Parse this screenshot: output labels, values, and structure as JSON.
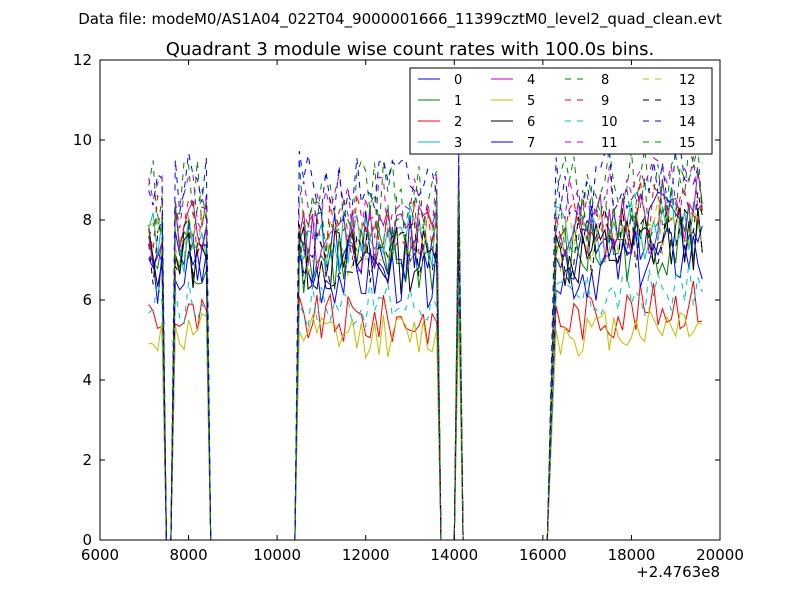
{
  "figure": {
    "suptitle": "Data file: modeM0/AS1A04_022T04_9000001666_11399cztM0_level2_quad_clean.evt"
  },
  "chart_data": {
    "type": "line",
    "title": "Quadrant 3 module wise count rates with 100.0s bins.",
    "xlabel": "",
    "ylabel": "",
    "x_offset_label": "+2.4763e8",
    "xlim": [
      6000,
      20000
    ],
    "ylim": [
      0,
      12
    ],
    "x_ticks": [
      6000,
      8000,
      10000,
      12000,
      14000,
      16000,
      18000,
      20000
    ],
    "y_ticks": [
      0,
      2,
      4,
      6,
      8,
      10,
      12
    ],
    "x_tick_labels": [
      "6000",
      "8000",
      "10000",
      "12000",
      "14000",
      "16000",
      "18000",
      "20000"
    ],
    "y_tick_labels": [
      "0",
      "2",
      "4",
      "6",
      "8",
      "10",
      "12"
    ],
    "grid": false,
    "legend_position": "top-right",
    "legend_columns": 4,
    "segments": [
      {
        "start": 7100,
        "end": 7400,
        "zero_after": [
          7500,
          7600
        ]
      },
      {
        "start": 7700,
        "end": 8400,
        "zero_after": [
          8500,
          10400
        ]
      },
      {
        "start": 10500,
        "end": 13600,
        "zero_after": [
          13700,
          14000
        ]
      },
      {
        "start": 14100,
        "end": 14100,
        "zero_after": [
          14200,
          16100
        ]
      },
      {
        "start": 16300,
        "end": 19600,
        "zero_after": []
      }
    ],
    "series": [
      {
        "name": "0",
        "color": "#0000ff",
        "dash": "solid",
        "level": 7.3,
        "peak": 8.5
      },
      {
        "name": "1",
        "color": "#008000",
        "dash": "solid",
        "level": 7.0,
        "peak": 8.2
      },
      {
        "name": "2",
        "color": "#ff0000",
        "dash": "solid",
        "level": 5.5,
        "peak": 6.3
      },
      {
        "name": "3",
        "color": "#00bfbf",
        "dash": "solid",
        "level": 7.5,
        "peak": 8.6
      },
      {
        "name": "4",
        "color": "#bf00bf",
        "dash": "solid",
        "level": 7.6,
        "peak": 8.8
      },
      {
        "name": "5",
        "color": "#bfbf00",
        "dash": "solid",
        "level": 5.1,
        "peak": 5.8
      },
      {
        "name": "6",
        "color": "#000000",
        "dash": "solid",
        "level": 7.0,
        "peak": 8.1
      },
      {
        "name": "7",
        "color": "#0000ff",
        "dash": "solid",
        "level": 6.6,
        "peak": 7.6
      },
      {
        "name": "8",
        "color": "#008000",
        "dash": "dashed",
        "level": 8.6,
        "peak": 9.8
      },
      {
        "name": "9",
        "color": "#ff0000",
        "dash": "dashed",
        "level": 7.8,
        "peak": 8.9
      },
      {
        "name": "10",
        "color": "#00bfbf",
        "dash": "dashed",
        "level": 5.9,
        "peak": 6.7
      },
      {
        "name": "11",
        "color": "#bf00bf",
        "dash": "dashed",
        "level": 8.3,
        "peak": 9.4
      },
      {
        "name": "12",
        "color": "#bfbf00",
        "dash": "dashed",
        "level": 7.4,
        "peak": 8.4
      },
      {
        "name": "13",
        "color": "#000000",
        "dash": "dashed",
        "level": 7.2,
        "peak": 8.3
      },
      {
        "name": "14",
        "color": "#0000ff",
        "dash": "dashed",
        "level": 8.8,
        "peak": 9.9
      },
      {
        "name": "15",
        "color": "#008000",
        "dash": "dashed",
        "level": 7.9,
        "peak": 9.0
      }
    ]
  }
}
